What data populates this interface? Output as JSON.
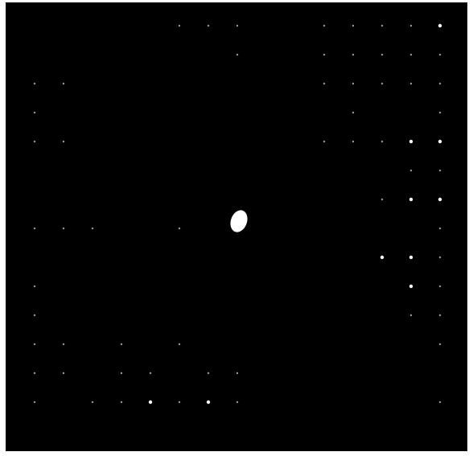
{
  "image": {
    "subject": "diffraction-spot-pattern",
    "background_color": "#000000",
    "spot_color": "#ffffff",
    "central_spot": {
      "shape": "bright-blob",
      "color": "#ffffff"
    },
    "grid": {
      "columns": 15,
      "rows": 15,
      "visible_spots": [
        [
          6,
          0
        ],
        [
          7,
          0
        ],
        [
          8,
          0
        ],
        [
          11,
          0
        ],
        [
          12,
          0
        ],
        [
          13,
          0
        ],
        [
          14,
          0
        ],
        [
          15,
          0
        ],
        [
          8,
          1
        ],
        [
          11,
          1
        ],
        [
          12,
          1
        ],
        [
          13,
          1
        ],
        [
          14,
          1
        ],
        [
          15,
          1
        ],
        [
          1,
          2
        ],
        [
          2,
          2
        ],
        [
          11,
          2
        ],
        [
          12,
          2
        ],
        [
          13,
          2
        ],
        [
          14,
          2
        ],
        [
          15,
          2
        ],
        [
          1,
          3
        ],
        [
          12,
          3
        ],
        [
          15,
          3
        ],
        [
          1,
          4
        ],
        [
          2,
          4
        ],
        [
          11,
          4
        ],
        [
          12,
          4
        ],
        [
          13,
          4
        ],
        [
          14,
          4
        ],
        [
          15,
          4
        ],
        [
          14,
          5
        ],
        [
          15,
          5
        ],
        [
          13,
          6
        ],
        [
          14,
          6
        ],
        [
          15,
          6
        ],
        [
          1,
          7
        ],
        [
          2,
          7
        ],
        [
          3,
          7
        ],
        [
          6,
          7
        ],
        [
          15,
          7
        ],
        [
          13,
          8
        ],
        [
          14,
          8
        ],
        [
          15,
          8
        ],
        [
          1,
          9
        ],
        [
          14,
          9
        ],
        [
          15,
          9
        ],
        [
          1,
          10
        ],
        [
          14,
          10
        ],
        [
          15,
          10
        ],
        [
          1,
          11
        ],
        [
          2,
          11
        ],
        [
          4,
          11
        ],
        [
          6,
          11
        ],
        [
          15,
          11
        ],
        [
          1,
          12
        ],
        [
          2,
          12
        ],
        [
          4,
          12
        ],
        [
          5,
          12
        ],
        [
          7,
          12
        ],
        [
          8,
          12
        ],
        [
          1,
          13
        ],
        [
          3,
          13
        ],
        [
          4,
          13
        ],
        [
          5,
          13
        ],
        [
          6,
          13
        ],
        [
          7,
          13
        ],
        [
          8,
          13
        ],
        [
          15,
          13
        ]
      ],
      "bright_spots": [
        [
          15,
          0
        ],
        [
          14,
          4
        ],
        [
          15,
          4
        ],
        [
          14,
          6
        ],
        [
          15,
          6
        ],
        [
          13,
          8
        ],
        [
          14,
          8
        ],
        [
          14,
          9
        ],
        [
          5,
          13
        ],
        [
          7,
          13
        ]
      ]
    }
  }
}
